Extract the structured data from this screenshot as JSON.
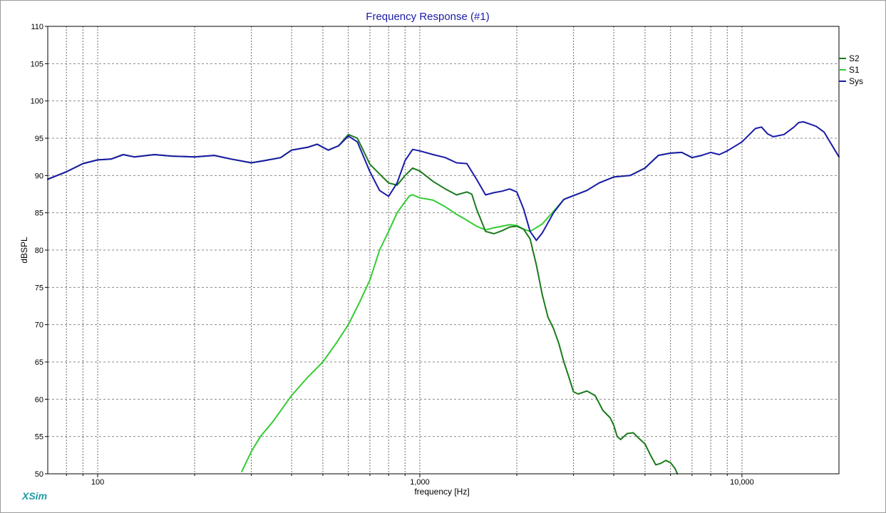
{
  "app": {
    "brand": "XSim"
  },
  "chart_data": {
    "type": "line",
    "title": "Frequency Response (#1)",
    "xlabel": "frequency [Hz]",
    "ylabel": "dBSPL",
    "x_scale": "log",
    "xlim": [
      70,
      20000
    ],
    "ylim": [
      50,
      110
    ],
    "grid": true,
    "legend_position": "right",
    "x_ticks": [
      {
        "value": 100,
        "label": "100"
      },
      {
        "value": 1000,
        "label": "1,000"
      },
      {
        "value": 10000,
        "label": "10,000"
      }
    ],
    "y_ticks": [
      {
        "value": 110,
        "label": "110"
      },
      {
        "value": 105,
        "label": "105"
      },
      {
        "value": 100,
        "label": "100"
      },
      {
        "value": 95,
        "label": "95"
      },
      {
        "value": 90,
        "label": "90"
      },
      {
        "value": 85,
        "label": "85"
      },
      {
        "value": 80,
        "label": "80"
      },
      {
        "value": 75,
        "label": "75"
      },
      {
        "value": 70,
        "label": "70"
      },
      {
        "value": 65,
        "label": "65"
      },
      {
        "value": 60,
        "label": "60"
      },
      {
        "value": 55,
        "label": "55"
      },
      {
        "value": 50,
        "label": "50"
      }
    ],
    "series": [
      {
        "name": "S1",
        "color": "#33cc33",
        "points": [
          [
            280,
            50.3
          ],
          [
            300,
            53.0
          ],
          [
            320,
            55.0
          ],
          [
            350,
            57.0
          ],
          [
            400,
            60.5
          ],
          [
            450,
            63.0
          ],
          [
            500,
            65.0
          ],
          [
            550,
            67.5
          ],
          [
            600,
            70.0
          ],
          [
            650,
            73.0
          ],
          [
            700,
            76.0
          ],
          [
            750,
            80.0
          ],
          [
            800,
            82.5
          ],
          [
            850,
            85.0
          ],
          [
            900,
            86.5
          ],
          [
            930,
            87.3
          ],
          [
            950,
            87.4
          ],
          [
            1000,
            87.0
          ],
          [
            1100,
            86.7
          ],
          [
            1200,
            85.8
          ],
          [
            1300,
            84.8
          ],
          [
            1400,
            84.0
          ],
          [
            1500,
            83.2
          ],
          [
            1600,
            82.7
          ],
          [
            1700,
            83.0
          ],
          [
            1800,
            83.2
          ],
          [
            1900,
            83.4
          ],
          [
            2000,
            83.3
          ],
          [
            2100,
            82.8
          ],
          [
            2200,
            82.5
          ],
          [
            2400,
            83.5
          ],
          [
            2600,
            85.2
          ],
          [
            2800,
            86.8
          ],
          [
            3000,
            87.3
          ],
          [
            3300,
            88.0
          ],
          [
            3600,
            89.0
          ],
          [
            4000,
            89.8
          ],
          [
            4500,
            90.0
          ],
          [
            5000,
            91.0
          ],
          [
            5500,
            92.7
          ],
          [
            6000,
            93.0
          ],
          [
            6500,
            93.1
          ],
          [
            7000,
            92.4
          ],
          [
            7500,
            92.7
          ]
        ]
      },
      {
        "name": "S2",
        "color": "#1a7a1a",
        "points": [
          [
            70,
            89.5
          ],
          [
            80,
            90.5
          ],
          [
            90,
            91.6
          ],
          [
            100,
            92.1
          ],
          [
            110,
            92.2
          ],
          [
            120,
            92.8
          ],
          [
            130,
            92.5
          ],
          [
            150,
            92.8
          ],
          [
            170,
            92.6
          ],
          [
            200,
            92.5
          ],
          [
            230,
            92.7
          ],
          [
            260,
            92.2
          ],
          [
            300,
            91.7
          ],
          [
            330,
            92.0
          ],
          [
            370,
            92.4
          ],
          [
            400,
            93.4
          ],
          [
            450,
            93.8
          ],
          [
            480,
            94.2
          ],
          [
            520,
            93.4
          ],
          [
            560,
            94.0
          ],
          [
            600,
            95.5
          ],
          [
            640,
            95.0
          ],
          [
            700,
            91.5
          ],
          [
            750,
            90.2
          ],
          [
            800,
            89.0
          ],
          [
            850,
            88.7
          ],
          [
            900,
            90.0
          ],
          [
            950,
            91.0
          ],
          [
            1000,
            90.6
          ],
          [
            1100,
            89.2
          ],
          [
            1200,
            88.2
          ],
          [
            1300,
            87.4
          ],
          [
            1400,
            87.8
          ],
          [
            1450,
            87.5
          ],
          [
            1500,
            85.5
          ],
          [
            1600,
            82.5
          ],
          [
            1700,
            82.2
          ],
          [
            1800,
            82.6
          ],
          [
            1900,
            83.1
          ],
          [
            2000,
            83.2
          ],
          [
            2100,
            82.8
          ],
          [
            2200,
            81.5
          ],
          [
            2300,
            78.0
          ],
          [
            2400,
            74.0
          ],
          [
            2500,
            71.0
          ],
          [
            2600,
            69.5
          ],
          [
            2700,
            67.5
          ],
          [
            2800,
            65.0
          ],
          [
            2900,
            63.0
          ],
          [
            3000,
            61.0
          ],
          [
            3100,
            60.7
          ],
          [
            3300,
            61.1
          ],
          [
            3500,
            60.5
          ],
          [
            3700,
            58.5
          ],
          [
            3900,
            57.5
          ],
          [
            4000,
            56.5
          ],
          [
            4100,
            55.0
          ],
          [
            4200,
            54.6
          ],
          [
            4400,
            55.4
          ],
          [
            4600,
            55.5
          ],
          [
            4800,
            54.7
          ],
          [
            5000,
            54.0
          ],
          [
            5200,
            52.5
          ],
          [
            5400,
            51.2
          ],
          [
            5600,
            51.4
          ],
          [
            5800,
            51.8
          ],
          [
            6000,
            51.5
          ],
          [
            6200,
            50.7
          ],
          [
            6300,
            50.0
          ]
        ]
      },
      {
        "name": "Sys",
        "color": "#1a1aa8",
        "points": [
          [
            70,
            89.5
          ],
          [
            80,
            90.5
          ],
          [
            90,
            91.6
          ],
          [
            100,
            92.1
          ],
          [
            110,
            92.2
          ],
          [
            120,
            92.8
          ],
          [
            130,
            92.5
          ],
          [
            150,
            92.8
          ],
          [
            170,
            92.6
          ],
          [
            200,
            92.5
          ],
          [
            230,
            92.7
          ],
          [
            260,
            92.2
          ],
          [
            300,
            91.7
          ],
          [
            330,
            92.0
          ],
          [
            370,
            92.4
          ],
          [
            400,
            93.4
          ],
          [
            450,
            93.8
          ],
          [
            480,
            94.2
          ],
          [
            520,
            93.4
          ],
          [
            560,
            94.0
          ],
          [
            600,
            95.3
          ],
          [
            640,
            94.5
          ],
          [
            700,
            90.5
          ],
          [
            750,
            88.0
          ],
          [
            800,
            87.2
          ],
          [
            850,
            89.0
          ],
          [
            900,
            92.0
          ],
          [
            950,
            93.5
          ],
          [
            1000,
            93.3
          ],
          [
            1100,
            92.8
          ],
          [
            1200,
            92.4
          ],
          [
            1300,
            91.7
          ],
          [
            1400,
            91.6
          ],
          [
            1500,
            89.5
          ],
          [
            1600,
            87.4
          ],
          [
            1700,
            87.7
          ],
          [
            1800,
            87.9
          ],
          [
            1900,
            88.2
          ],
          [
            2000,
            87.8
          ],
          [
            2100,
            85.5
          ],
          [
            2200,
            82.5
          ],
          [
            2300,
            81.3
          ],
          [
            2400,
            82.3
          ],
          [
            2600,
            85.0
          ],
          [
            2800,
            86.8
          ],
          [
            3000,
            87.3
          ],
          [
            3300,
            88.0
          ],
          [
            3600,
            89.0
          ],
          [
            4000,
            89.8
          ],
          [
            4500,
            90.0
          ],
          [
            5000,
            91.0
          ],
          [
            5500,
            92.7
          ],
          [
            6000,
            93.0
          ],
          [
            6500,
            93.1
          ],
          [
            7000,
            92.4
          ],
          [
            7500,
            92.7
          ],
          [
            8000,
            93.1
          ],
          [
            8500,
            92.8
          ],
          [
            9000,
            93.3
          ],
          [
            10000,
            94.5
          ],
          [
            11000,
            96.3
          ],
          [
            11500,
            96.5
          ],
          [
            12000,
            95.6
          ],
          [
            12500,
            95.2
          ],
          [
            13500,
            95.5
          ],
          [
            14500,
            96.5
          ],
          [
            15000,
            97.1
          ],
          [
            15500,
            97.2
          ],
          [
            16000,
            97.0
          ],
          [
            17000,
            96.6
          ],
          [
            18000,
            95.8
          ],
          [
            20000,
            92.5
          ]
        ]
      }
    ]
  }
}
